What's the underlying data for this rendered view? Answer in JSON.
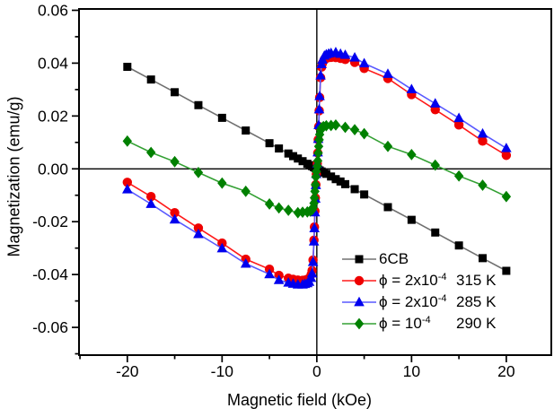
{
  "chart_data": {
    "type": "line",
    "title": "",
    "xlabel": "Magnetic field (kOe)",
    "ylabel": "Magnetization (emu/g)",
    "xlim": [
      -25.1,
      24.75
    ],
    "ylim": [
      -0.0705,
      0.0605
    ],
    "grid": false,
    "zero_lines": true,
    "legend_position": "inside-bottom-right",
    "x_major_ticks": [
      -20,
      -10,
      0,
      10,
      20
    ],
    "x_tick_labels": [
      "-20",
      "-10",
      "0",
      "10",
      "20"
    ],
    "x_minor_ticks": [
      -25,
      -15,
      -5,
      5,
      15
    ],
    "y_major_ticks": [
      0.06,
      0.04,
      0.02,
      0,
      -0.02,
      -0.04,
      -0.06
    ],
    "y_tick_labels": [
      "0.06",
      "0.04",
      "0.02",
      "0.00",
      "-0.02",
      "-0.04",
      "-0.06"
    ],
    "y_minor_ticks": [
      0.05,
      0.03,
      0.01,
      -0.01,
      -0.03,
      -0.05,
      -0.07
    ],
    "series": [
      {
        "id": "6cb",
        "name": "6CB",
        "legend_pre": "6CB",
        "legend_sup": "",
        "legend_temp": "",
        "marker": "square",
        "marker_color": "#000000",
        "line_color": "#707070",
        "points": [
          [
            -20,
            0.0386
          ],
          [
            -17.5,
            0.0338
          ],
          [
            -15,
            0.029
          ],
          [
            -12.5,
            0.0241
          ],
          [
            -10,
            0.0193
          ],
          [
            -7.5,
            0.0145
          ],
          [
            -5,
            0.0097
          ],
          [
            -4,
            0.0077
          ],
          [
            -3,
            0.0058
          ],
          [
            -2.5,
            0.0048
          ],
          [
            -2,
            0.0039
          ],
          [
            -1.5,
            0.0029
          ],
          [
            -1,
            0.0019
          ],
          [
            -0.75,
            0.0014
          ],
          [
            -0.5,
            0.001
          ],
          [
            -0.3,
            0.0006
          ],
          [
            -0.15,
            0.0003
          ],
          [
            0,
            0
          ],
          [
            0.15,
            -0.0003
          ],
          [
            0.3,
            -0.0006
          ],
          [
            0.5,
            -0.001
          ],
          [
            0.75,
            -0.0014
          ],
          [
            1,
            -0.0019
          ],
          [
            1.5,
            -0.0029
          ],
          [
            2,
            -0.0039
          ],
          [
            2.5,
            -0.0048
          ],
          [
            3,
            -0.0058
          ],
          [
            4,
            -0.0077
          ],
          [
            5,
            -0.0097
          ],
          [
            7.5,
            -0.0145
          ],
          [
            10,
            -0.0193
          ],
          [
            12.5,
            -0.0241
          ],
          [
            15,
            -0.029
          ],
          [
            17.5,
            -0.0338
          ],
          [
            20,
            -0.0386
          ]
        ]
      },
      {
        "id": "phi-2e-4-315k",
        "name": "phi = 2x10^-4, 315 K",
        "legend_pre": "ϕ = 2x10",
        "legend_sup": "-4",
        "legend_temp": "315 K",
        "marker": "circle",
        "marker_color": "#ee0000",
        "line_color": "#ff1a1a",
        "points": [
          [
            -20,
            -0.0051
          ],
          [
            -17.5,
            -0.0105
          ],
          [
            -15,
            -0.0166
          ],
          [
            -12.5,
            -0.0224
          ],
          [
            -10,
            -0.0281
          ],
          [
            -7.5,
            -0.0342
          ],
          [
            -5,
            -0.038
          ],
          [
            -4,
            -0.0403
          ],
          [
            -3,
            -0.0414
          ],
          [
            -2.5,
            -0.0418
          ],
          [
            -2,
            -0.0421
          ],
          [
            -1.5,
            -0.0422
          ],
          [
            -1.25,
            -0.0421
          ],
          [
            -1,
            -0.0418
          ],
          [
            -0.8,
            -0.0414
          ],
          [
            -0.6,
            -0.04
          ],
          [
            -0.5,
            -0.0385
          ],
          [
            -0.4,
            -0.0345
          ],
          [
            -0.3,
            -0.027
          ],
          [
            -0.25,
            -0.022
          ],
          [
            -0.2,
            -0.016
          ],
          [
            -0.15,
            -0.011
          ],
          [
            -0.1,
            -0.006
          ],
          [
            -0.05,
            -0.002
          ],
          [
            0.05,
            0.002
          ],
          [
            0.1,
            0.006
          ],
          [
            0.15,
            0.011
          ],
          [
            0.2,
            0.016
          ],
          [
            0.25,
            0.022
          ],
          [
            0.3,
            0.027
          ],
          [
            0.4,
            0.0345
          ],
          [
            0.5,
            0.0385
          ],
          [
            0.6,
            0.04
          ],
          [
            0.8,
            0.0414
          ],
          [
            1,
            0.0418
          ],
          [
            1.25,
            0.0421
          ],
          [
            1.5,
            0.0422
          ],
          [
            2,
            0.0421
          ],
          [
            2.5,
            0.0418
          ],
          [
            3,
            0.0414
          ],
          [
            4,
            0.0403
          ],
          [
            5,
            0.038
          ],
          [
            7.5,
            0.0342
          ],
          [
            10,
            0.0281
          ],
          [
            12.5,
            0.0224
          ],
          [
            15,
            0.0166
          ],
          [
            17.5,
            0.0105
          ],
          [
            20,
            0.0051
          ]
        ]
      },
      {
        "id": "phi-2e-4-285k",
        "name": "phi = 2x10^-4, 285 K",
        "legend_pre": "ϕ = 2x10",
        "legend_sup": "-4",
        "legend_temp": "285 K",
        "marker": "triangle",
        "marker_color": "#0000ee",
        "line_color": "#5959ff",
        "points": [
          [
            -20,
            -0.0078
          ],
          [
            -17.5,
            -0.0133
          ],
          [
            -15,
            -0.0192
          ],
          [
            -12.5,
            -0.0247
          ],
          [
            -10,
            -0.0301
          ],
          [
            -7.5,
            -0.0359
          ],
          [
            -5,
            -0.0399
          ],
          [
            -4,
            -0.0421
          ],
          [
            -3,
            -0.0431
          ],
          [
            -2.5,
            -0.0435
          ],
          [
            -2,
            -0.0438
          ],
          [
            -1.5,
            -0.0438
          ],
          [
            -1.25,
            -0.0436
          ],
          [
            -1,
            -0.0433
          ],
          [
            -0.8,
            -0.0428
          ],
          [
            -0.6,
            -0.0413
          ],
          [
            -0.5,
            -0.0396
          ],
          [
            -0.4,
            -0.0353
          ],
          [
            -0.3,
            -0.0275
          ],
          [
            -0.25,
            -0.0225
          ],
          [
            -0.2,
            -0.0165
          ],
          [
            -0.15,
            -0.0113
          ],
          [
            -0.1,
            -0.0062
          ],
          [
            -0.05,
            -0.002
          ],
          [
            0.05,
            0.002
          ],
          [
            0.1,
            0.0062
          ],
          [
            0.15,
            0.0113
          ],
          [
            0.2,
            0.0165
          ],
          [
            0.25,
            0.0225
          ],
          [
            0.3,
            0.0275
          ],
          [
            0.4,
            0.0353
          ],
          [
            0.5,
            0.0396
          ],
          [
            0.6,
            0.0413
          ],
          [
            0.8,
            0.0428
          ],
          [
            1,
            0.0433
          ],
          [
            1.25,
            0.0436
          ],
          [
            1.5,
            0.0438
          ],
          [
            2,
            0.0441
          ],
          [
            2.5,
            0.0435
          ],
          [
            3,
            0.0431
          ],
          [
            4,
            0.0421
          ],
          [
            5,
            0.0399
          ],
          [
            7.5,
            0.0359
          ],
          [
            10,
            0.0301
          ],
          [
            12.5,
            0.0247
          ],
          [
            15,
            0.0192
          ],
          [
            17.5,
            0.0133
          ],
          [
            20,
            0.0078
          ]
        ]
      },
      {
        "id": "phi-1e-4-290k",
        "name": "phi = 10^-4, 290 K",
        "legend_pre": "ϕ = 10",
        "legend_sup": "-4",
        "legend_temp": "290 K",
        "marker": "diamond",
        "marker_color": "#008000",
        "line_color": "#33a033",
        "points": [
          [
            -20,
            0.0105
          ],
          [
            -17.5,
            0.0062
          ],
          [
            -15,
            0.0027
          ],
          [
            -12.5,
            -0.0014
          ],
          [
            -10,
            -0.0054
          ],
          [
            -7.5,
            -0.0085
          ],
          [
            -5,
            -0.0133
          ],
          [
            -4,
            -0.0148
          ],
          [
            -3,
            -0.0157
          ],
          [
            -2,
            -0.0166
          ],
          [
            -1.5,
            -0.0164
          ],
          [
            -1,
            -0.0163
          ],
          [
            -0.7,
            -0.016
          ],
          [
            -0.5,
            -0.0155
          ],
          [
            -0.4,
            -0.0147
          ],
          [
            -0.3,
            -0.013
          ],
          [
            -0.25,
            -0.011
          ],
          [
            -0.2,
            -0.0085
          ],
          [
            -0.15,
            -0.006
          ],
          [
            -0.1,
            -0.003
          ],
          [
            -0.05,
            -0.001
          ],
          [
            0.05,
            0.001
          ],
          [
            0.1,
            0.003
          ],
          [
            0.15,
            0.006
          ],
          [
            0.2,
            0.0085
          ],
          [
            0.25,
            0.011
          ],
          [
            0.3,
            0.013
          ],
          [
            0.4,
            0.0147
          ],
          [
            0.5,
            0.0155
          ],
          [
            0.7,
            0.016
          ],
          [
            1,
            0.0163
          ],
          [
            1.5,
            0.0164
          ],
          [
            2,
            0.0166
          ],
          [
            3,
            0.0157
          ],
          [
            4,
            0.0148
          ],
          [
            5,
            0.0133
          ],
          [
            7.5,
            0.0085
          ],
          [
            10,
            0.0054
          ],
          [
            12.5,
            0.0014
          ],
          [
            15,
            -0.0027
          ],
          [
            17.5,
            -0.0062
          ],
          [
            20,
            -0.0105
          ]
        ]
      }
    ]
  }
}
